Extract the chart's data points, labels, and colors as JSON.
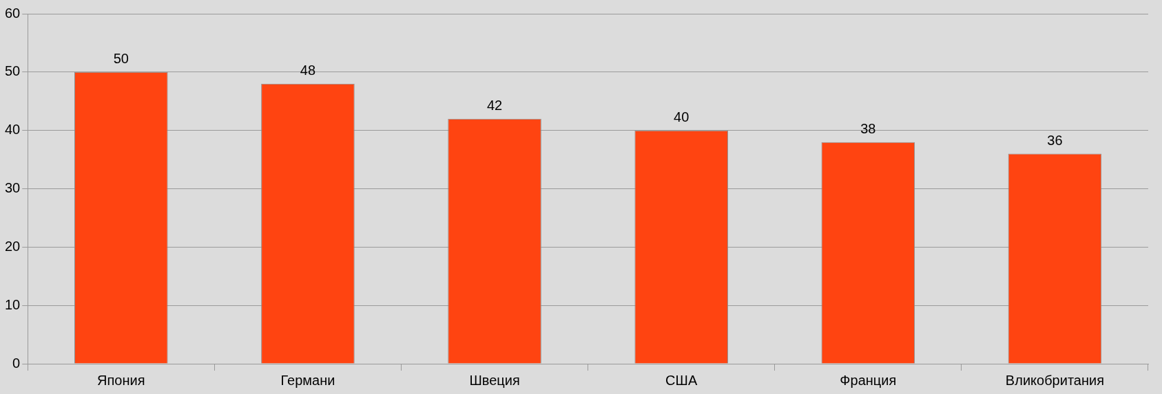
{
  "chart_data": {
    "type": "bar",
    "categories": [
      "Япония",
      "Германи",
      "Швеция",
      "США",
      "Франция",
      "Вликобритания"
    ],
    "values": [
      50,
      48,
      42,
      40,
      38,
      36
    ],
    "color": "#ff4411",
    "ylim": [
      0,
      60
    ],
    "yticks": [
      0,
      10,
      20,
      30,
      40,
      50,
      60
    ],
    "grid": "y",
    "data_labels": true,
    "legend": false
  }
}
